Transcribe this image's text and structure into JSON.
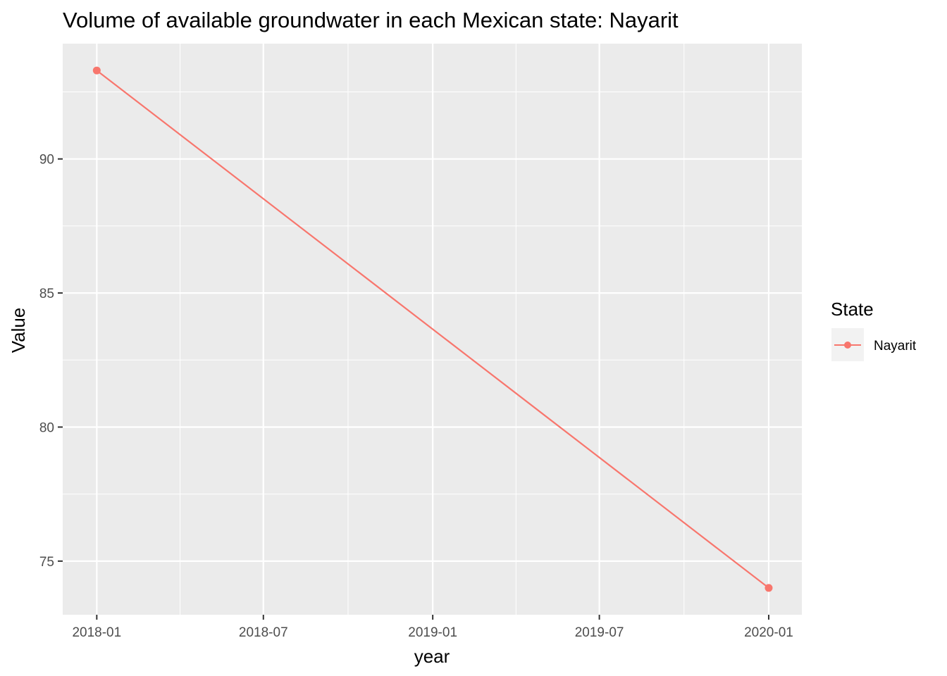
{
  "chart_data": {
    "type": "line",
    "title": "Volume of available groundwater in each Mexican state: Nayarit",
    "xlabel": "year",
    "ylabel": "Value",
    "x_ticks": [
      "2018-01",
      "2018-07",
      "2019-01",
      "2019-07",
      "2020-01"
    ],
    "x_tick_values": [
      "2018-01-01",
      "2018-07-01",
      "2019-01-01",
      "2019-07-01",
      "2020-01-01"
    ],
    "y_ticks": [
      75,
      80,
      85,
      90
    ],
    "xlim": [
      "2017-11-25",
      "2020-02-06"
    ],
    "ylim": [
      73.0,
      94.3
    ],
    "grid": true,
    "legend_position": "right",
    "legend_title": "State",
    "series": [
      {
        "name": "Nayarit",
        "color": "#f8766d",
        "x": [
          "2018-01-01",
          "2020-01-01"
        ],
        "values": [
          93.3,
          74.0
        ]
      }
    ]
  }
}
